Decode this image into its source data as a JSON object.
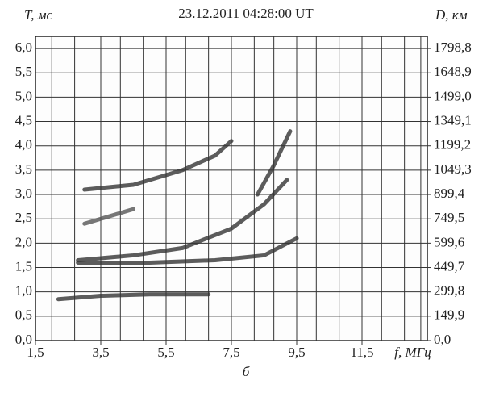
{
  "chart_data": {
    "type": "line",
    "title": "23.12.2011   04:28:00 UT",
    "y_label": "T, мс",
    "y2_label": "D, км",
    "x_label": "f, МГц",
    "caption": "б",
    "xlim": [
      1.5,
      13.5
    ],
    "ylim": [
      0,
      6.25
    ],
    "y2lim": [
      0,
      1873.75
    ],
    "xticks": [
      {
        "value": 1.5,
        "label": "1,5"
      },
      {
        "value": 3.5,
        "label": "3,5"
      },
      {
        "value": 5.5,
        "label": "5,5"
      },
      {
        "value": 7.5,
        "label": "7,5"
      },
      {
        "value": 9.5,
        "label": "9,5"
      },
      {
        "value": 11.5,
        "label": "11,5"
      }
    ],
    "x_minor_grid": [
      2,
      2.7,
      3.5,
      4.1,
      4.8,
      5.5,
      6.1,
      6.8,
      7.5,
      8.2,
      8.8,
      9.5,
      10.1,
      10.8,
      11.5,
      12.1,
      12.8,
      13.3
    ],
    "yticks": [
      {
        "value": 0,
        "label": "0,0"
      },
      {
        "value": 0.5,
        "label": "0,5"
      },
      {
        "value": 1,
        "label": "1,0"
      },
      {
        "value": 1.5,
        "label": "1,5"
      },
      {
        "value": 2,
        "label": "2,0"
      },
      {
        "value": 2.5,
        "label": "2,5"
      },
      {
        "value": 3,
        "label": "3,0"
      },
      {
        "value": 3.5,
        "label": "3,5"
      },
      {
        "value": 4,
        "label": "4,0"
      },
      {
        "value": 4.5,
        "label": "4,5"
      },
      {
        "value": 5,
        "label": "5,0"
      },
      {
        "value": 5.5,
        "label": "5,5"
      },
      {
        "value": 6,
        "label": "6,0"
      }
    ],
    "y2ticks": [
      {
        "value": 0,
        "label": "0,0"
      },
      {
        "value": 149.9,
        "label": "149,9"
      },
      {
        "value": 299.8,
        "label": "299,8"
      },
      {
        "value": 449.7,
        "label": "449,7"
      },
      {
        "value": 599.6,
        "label": "599,6"
      },
      {
        "value": 749.5,
        "label": "749,5"
      },
      {
        "value": 899.4,
        "label": "899,4"
      },
      {
        "value": 1049.3,
        "label": "1049,3"
      },
      {
        "value": 1199.2,
        "label": "1199,2"
      },
      {
        "value": 1349.1,
        "label": "1349,1"
      },
      {
        "value": 1499,
        "label": "1499,0"
      },
      {
        "value": 1648.9,
        "label": "1648,9"
      },
      {
        "value": 1798.8,
        "label": "1798,8"
      }
    ],
    "grid": true,
    "series": [
      {
        "color": "#333333",
        "x": [
          2.2,
          3.5,
          5,
          6.8
        ],
        "values": [
          0.85,
          0.92,
          0.95,
          0.95
        ]
      },
      {
        "color": "#333333",
        "x": [
          2.8,
          4.5,
          6,
          7.5,
          8.5,
          9.2
        ],
        "values": [
          1.65,
          1.75,
          1.9,
          2.3,
          2.8,
          3.3
        ]
      },
      {
        "color": "#333333",
        "x": [
          2.8,
          5,
          7,
          8.5,
          9.5
        ],
        "values": [
          1.6,
          1.6,
          1.65,
          1.75,
          2.1
        ]
      },
      {
        "color": "#333333",
        "x": [
          3,
          4.5,
          6,
          7,
          7.5
        ],
        "values": [
          3.1,
          3.2,
          3.5,
          3.8,
          4.1
        ]
      },
      {
        "color": "#555555",
        "x": [
          3,
          4.5
        ],
        "values": [
          2.4,
          2.7
        ]
      },
      {
        "color": "#333333",
        "x": [
          8.3,
          8.8,
          9.3
        ],
        "values": [
          3.0,
          3.6,
          4.3
        ]
      }
    ]
  }
}
